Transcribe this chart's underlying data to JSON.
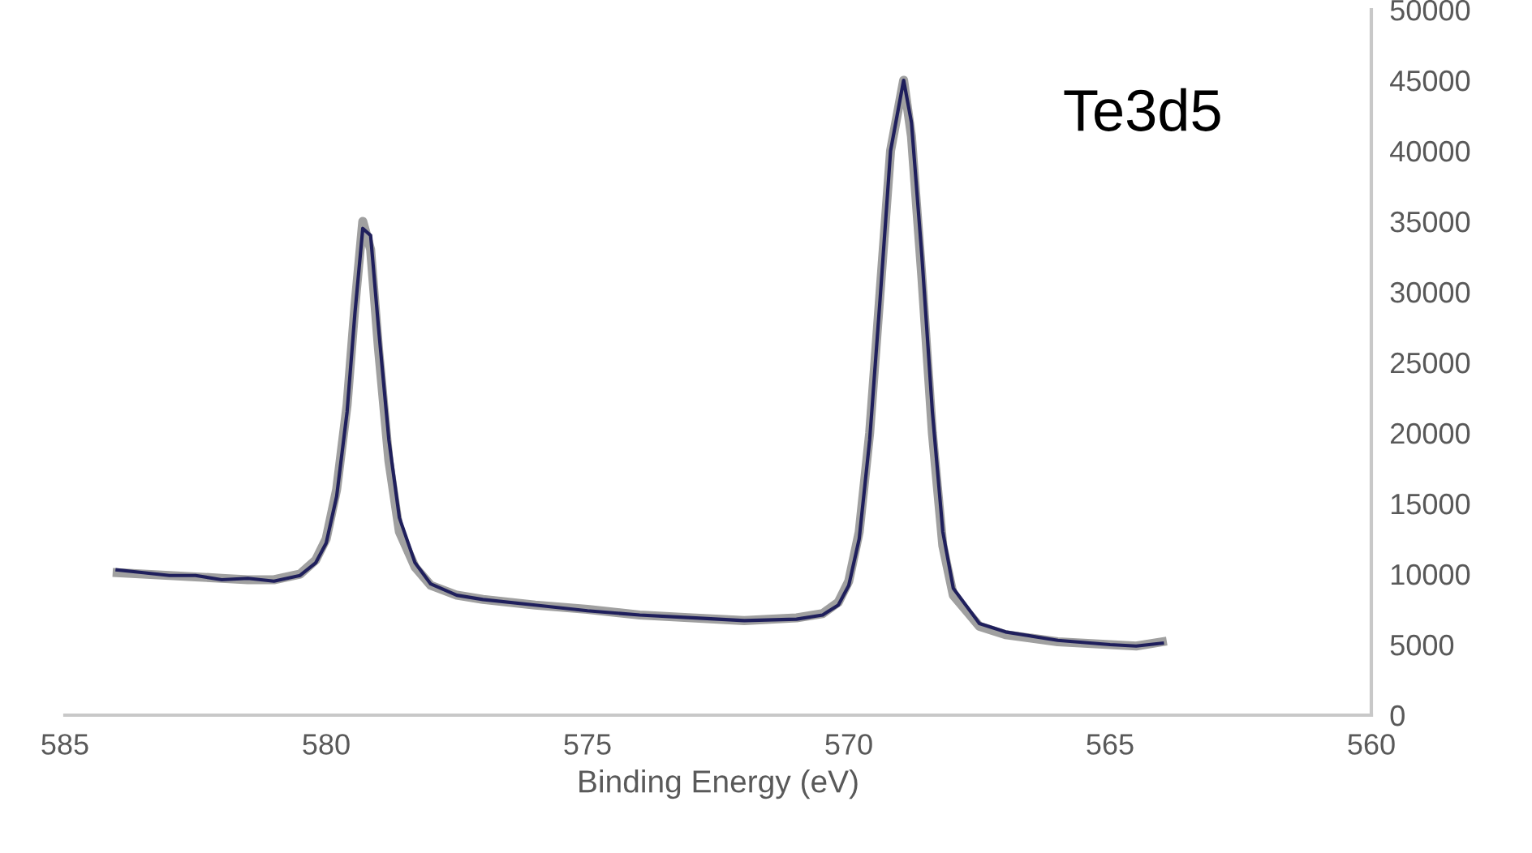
{
  "chart_data": {
    "type": "line",
    "xlabel": "Binding Energy (eV)",
    "annotations": [
      "Te3d5"
    ],
    "xlim": [
      585,
      560
    ],
    "xticks": [
      585,
      580,
      575,
      570,
      565,
      560
    ],
    "ylim": [
      0,
      50000
    ],
    "yticks": [
      0,
      5000,
      10000,
      15000,
      20000,
      25000,
      30000,
      35000,
      40000,
      45000,
      50000
    ],
    "grid": false,
    "legend": false,
    "marker": "none",
    "line_style": "solid",
    "series": [
      {
        "color": "#1f1f5c",
        "x": [
          584.0,
          583.5,
          583.0,
          582.5,
          582.0,
          581.5,
          581.0,
          580.5,
          580.2,
          580.0,
          579.8,
          579.6,
          579.45,
          579.3,
          579.15,
          579.0,
          578.8,
          578.6,
          578.3,
          578.0,
          577.5,
          577.0,
          576.0,
          575.0,
          574.0,
          573.0,
          572.0,
          571.0,
          570.5,
          570.2,
          570.0,
          569.8,
          569.6,
          569.4,
          569.2,
          568.95,
          568.8,
          568.6,
          568.4,
          568.2,
          568.0,
          567.5,
          567.0,
          566.0,
          565.0,
          564.5,
          564.0
        ],
        "values": [
          10300,
          10100,
          9900,
          9900,
          9600,
          9700,
          9500,
          9900,
          10800,
          12200,
          15500,
          21500,
          28500,
          34500,
          34000,
          27500,
          19500,
          14000,
          10800,
          9300,
          8500,
          8200,
          7800,
          7400,
          7100,
          6900,
          6700,
          6800,
          7100,
          7800,
          9200,
          12500,
          19500,
          29500,
          40000,
          45000,
          42000,
          32500,
          21500,
          13000,
          9000,
          6500,
          5900,
          5300,
          5000,
          4900,
          5100
        ]
      },
      {
        "color": "#a0a0a0",
        "x": [
          584.0,
          583.5,
          583.0,
          582.5,
          582.0,
          581.5,
          581.0,
          580.5,
          580.2,
          580.0,
          579.8,
          579.6,
          579.45,
          579.3,
          579.15,
          579.0,
          578.8,
          578.6,
          578.3,
          578.0,
          577.5,
          577.0,
          576.0,
          575.0,
          574.0,
          573.0,
          572.0,
          571.0,
          570.5,
          570.2,
          570.0,
          569.8,
          569.6,
          569.4,
          569.2,
          568.95,
          568.8,
          568.6,
          568.4,
          568.2,
          568.0,
          567.5,
          567.0,
          566.0,
          565.0,
          564.5,
          564.0
        ],
        "values": [
          10100,
          10000,
          9900,
          9800,
          9700,
          9600,
          9600,
          10000,
          11000,
          12500,
          16000,
          22000,
          29000,
          35000,
          33000,
          26000,
          18000,
          13000,
          10500,
          9200,
          8500,
          8200,
          7800,
          7500,
          7100,
          6900,
          6700,
          6900,
          7200,
          8000,
          9500,
          13000,
          20000,
          30000,
          40000,
          45000,
          41000,
          31000,
          20000,
          12000,
          8500,
          6300,
          5700,
          5200,
          5000,
          4900,
          5200
        ]
      }
    ]
  }
}
